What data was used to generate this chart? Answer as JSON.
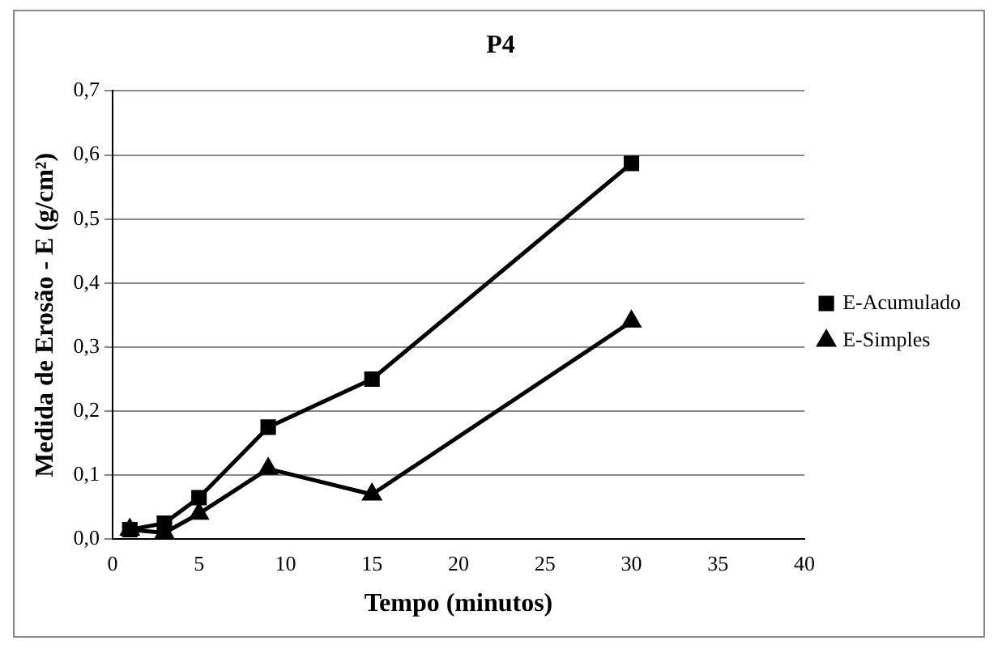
{
  "chart_data": {
    "type": "line",
    "title": "P4",
    "xlabel": "Tempo (minutos)",
    "ylabel": "Medida de Erosão - E (g/cm²)",
    "xlim": [
      0,
      40
    ],
    "xticks": [
      0,
      5,
      10,
      15,
      20,
      25,
      30,
      35,
      40
    ],
    "ylim": [
      0,
      0.7
    ],
    "yticks": [
      {
        "value": 0,
        "label": "0,0"
      },
      {
        "value": 0.1,
        "label": "0,1"
      },
      {
        "value": 0.2,
        "label": "0,2"
      },
      {
        "value": 0.3,
        "label": "0,3"
      },
      {
        "value": 0.4,
        "label": "0,4"
      },
      {
        "value": 0.5,
        "label": "0,5"
      },
      {
        "value": 0.6,
        "label": "0,6"
      },
      {
        "value": 0.7,
        "label": "0,7"
      }
    ],
    "grid": "y",
    "legend": "right",
    "line_style": "solid",
    "x": [
      1,
      3,
      5,
      9,
      15,
      30
    ],
    "series": [
      {
        "name": "E-Acumulado",
        "color": "#000000",
        "marker": "square",
        "values": [
          0.015,
          0.025,
          0.065,
          0.175,
          0.25,
          0.587
        ]
      },
      {
        "name": "E-Simples",
        "color": "#000000",
        "marker": "triangle",
        "values": [
          0.015,
          0.01,
          0.04,
          0.11,
          0.07,
          0.34
        ]
      }
    ]
  }
}
